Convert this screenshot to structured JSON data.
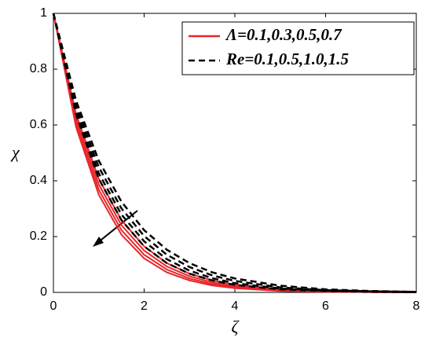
{
  "chart_data": {
    "type": "line",
    "x_label": "ζ",
    "y_label": "χ",
    "x": [
      0,
      0.5,
      1,
      1.5,
      2,
      2.5,
      3,
      3.5,
      4,
      5,
      6,
      7,
      8
    ],
    "series": [
      {
        "color": "#e8262a",
        "dash": false,
        "values": [
          1,
          0.638,
          0.407,
          0.259,
          0.165,
          0.105,
          0.067,
          0.043,
          0.027,
          0.011,
          0.005,
          0.002,
          0.001
        ]
      },
      {
        "color": "#e8262a",
        "dash": false,
        "values": [
          1,
          0.622,
          0.387,
          0.241,
          0.15,
          0.093,
          0.058,
          0.036,
          0.022,
          0.009,
          0.003,
          0.001,
          0
        ]
      },
      {
        "color": "#e8262a",
        "dash": false,
        "values": [
          1,
          0.607,
          0.368,
          0.223,
          0.135,
          0.082,
          0.05,
          0.03,
          0.018,
          0.007,
          0.002,
          0.001,
          0
        ]
      },
      {
        "color": "#e8262a",
        "dash": false,
        "values": [
          1,
          0.592,
          0.35,
          0.207,
          0.122,
          0.072,
          0.043,
          0.025,
          0.015,
          0.005,
          0.002,
          0.001,
          0
        ]
      },
      {
        "color": "#000000",
        "dash": true,
        "values": [
          1,
          0.687,
          0.472,
          0.325,
          0.223,
          0.153,
          0.105,
          0.072,
          0.05,
          0.024,
          0.011,
          0.005,
          0.002
        ]
      },
      {
        "color": "#000000",
        "dash": true,
        "values": [
          1,
          0.67,
          0.449,
          0.301,
          0.202,
          0.135,
          0.091,
          0.061,
          0.041,
          0.018,
          0.008,
          0.004,
          0.002
        ]
      },
      {
        "color": "#000000",
        "dash": true,
        "values": [
          1,
          0.654,
          0.427,
          0.279,
          0.183,
          0.119,
          0.078,
          0.051,
          0.033,
          0.014,
          0.006,
          0.003,
          0.001
        ]
      },
      {
        "color": "#000000",
        "dash": true,
        "values": [
          1,
          0.638,
          0.407,
          0.259,
          0.165,
          0.105,
          0.067,
          0.043,
          0.027,
          0.011,
          0.005,
          0.002,
          0.001
        ]
      }
    ],
    "legend": [
      {
        "label": "Λ=0.1,0.3,0.5,0.7",
        "color": "#e8262a",
        "dash": false
      },
      {
        "label": "Re=0.1,0.5,1.0,1.5",
        "color": "#000000",
        "dash": true
      }
    ],
    "xlim": [
      0,
      8
    ],
    "xticks": [
      0,
      2,
      4,
      6,
      8
    ],
    "ylim": [
      0,
      1
    ],
    "yticks": [
      0,
      0.2,
      0.4,
      0.6,
      0.8,
      1
    ]
  }
}
